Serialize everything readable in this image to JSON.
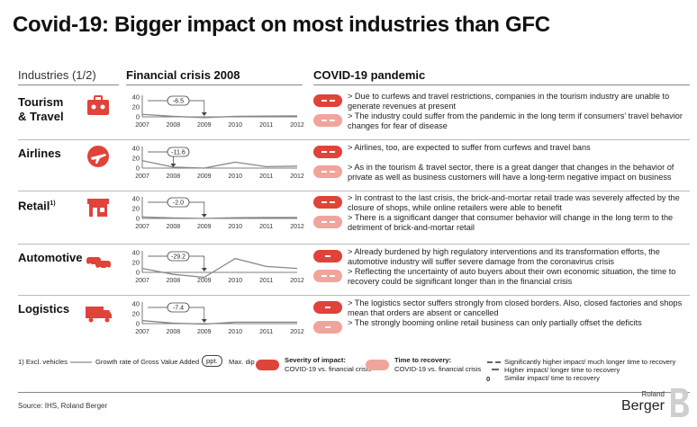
{
  "title": "Covid-19: Bigger impact on most industries than GFC",
  "headers": {
    "industries": "Industries (1/2)",
    "financial_crisis": "Financial crisis 2008",
    "covid": "COVID-19 pandemic"
  },
  "colors": {
    "severity": "#e0433a",
    "recovery": "#f0a49b",
    "line": "#888888",
    "dip_box": "#444444"
  },
  "chart_data": [
    {
      "type": "line",
      "industry": "Tourism & Travel",
      "icon": "suitcase-icon",
      "x": [
        2007,
        2008,
        2009,
        2010,
        2011,
        2012
      ],
      "y": [
        5,
        1,
        -1.5,
        1,
        1.5,
        2
      ],
      "ylim": [
        0,
        40
      ],
      "yticks": [
        "40",
        "20",
        "0"
      ],
      "max_dip": "-6.5",
      "dip_year": 2009
    },
    {
      "type": "line",
      "industry": "Airlines",
      "icon": "airplane-icon",
      "x": [
        2007,
        2008,
        2009,
        2010,
        2011,
        2012
      ],
      "y": [
        15,
        2,
        0,
        12,
        3,
        4
      ],
      "ylim": [
        0,
        40
      ],
      "yticks": [
        "40",
        "20",
        "0"
      ],
      "max_dip": "-11.6",
      "dip_year": 2008
    },
    {
      "type": "line",
      "industry": "Retail",
      "icon": "storefront-icon",
      "x": [
        2007,
        2008,
        2009,
        2010,
        2011,
        2012
      ],
      "y": [
        3,
        1,
        0,
        1.5,
        2,
        2
      ],
      "ylim": [
        0,
        40
      ],
      "yticks": [
        "40",
        "20",
        "0"
      ],
      "max_dip": "-2.0",
      "dip_year": 2009
    },
    {
      "type": "line",
      "industry": "Automotive",
      "icon": "cars-icon",
      "x": [
        2007,
        2008,
        2009,
        2010,
        2011,
        2012
      ],
      "y": [
        8,
        -4,
        -10,
        28,
        12,
        8
      ],
      "ylim": [
        0,
        40
      ],
      "yticks": [
        "40",
        "20",
        "0"
      ],
      "max_dip": "-29.2",
      "dip_year": 2009
    },
    {
      "type": "line",
      "industry": "Logistics",
      "icon": "truck-icon",
      "x": [
        2007,
        2008,
        2009,
        2010,
        2011,
        2012
      ],
      "y": [
        6,
        1,
        -1,
        3,
        3,
        3
      ],
      "ylim": [
        0,
        40
      ],
      "yticks": [
        "40",
        "20",
        "0"
      ],
      "max_dip": "-7.4",
      "dip_year": 2009
    }
  ],
  "rows": [
    {
      "name": "Tourism\n& Travel",
      "bullets": [
        "Due to curfews and travel restrictions, companies in the tourism industry are unable to generate revenues at present",
        "The industry could suffer from the pandemic in the long term if consumers' travel behavior changes for fear of disease"
      ],
      "severity_dashes": 2,
      "recovery_dashes": 2
    },
    {
      "name": "Airlines",
      "bullets": [
        "Airlines, too, are expected to suffer from curfews and travel bans",
        "As in the tourism & travel sector, there is a great danger that changes in the behavior of private as well as business customers will have a long-term negative impact on business"
      ],
      "severity_dashes": 2,
      "recovery_dashes": 2
    },
    {
      "name": "Retail",
      "name_sup": "1)",
      "bullets": [
        "In contrast to the last crisis, the brick-and-mortar retail trade was severely affected by the closure of shops, while online retailers were able to benefit",
        "There is a significant danger that consumer behavior will change in the long term to the detriment of brick-and-mortar retail"
      ],
      "severity_dashes": 2,
      "recovery_dashes": 2
    },
    {
      "name": "Automotive",
      "bullets": [
        "Already burdened by high regulatory interventions and its transformation efforts, the automotive industry will suffer severe damage from the coronavirus crisis",
        "Reflecting the uncertainty of auto buyers about their own economic situation, the time to recovery could be significant longer than in the financial crisis"
      ],
      "severity_dashes": 1,
      "recovery_dashes": 2
    },
    {
      "name": "Logistics",
      "bullets": [
        "The logistics sector suffers strongly from closed borders. Also, closed factories and shops mean that orders are absent or cancelled",
        "The strongly booming online retail business can only partially offset the deficits"
      ],
      "severity_dashes": 1,
      "recovery_dashes": 1
    }
  ],
  "legend": {
    "footnote": "1) Excl. vehicles",
    "growth_rate": "Growth rate of Gross Value Added",
    "ppt": "ppt.",
    "max_dip": "Max. dip",
    "severity_title": "Severity of impact:",
    "severity_sub": "COVID-19 vs. financial crisis",
    "recovery_title": "Time to recovery:",
    "recovery_sub": "COVID-19 vs. financial crisis",
    "key1": "Significantly higher impact/ much longer time to recovery",
    "key2": "Higher impact/ longer time to recovery",
    "key3_symbol": "0",
    "key3": "Similar impact/ time to recovery"
  },
  "source": "Source: IHS, Roland Berger",
  "logo": {
    "small": "Roland",
    "big": "Berger"
  },
  "bullet_marker": ">"
}
